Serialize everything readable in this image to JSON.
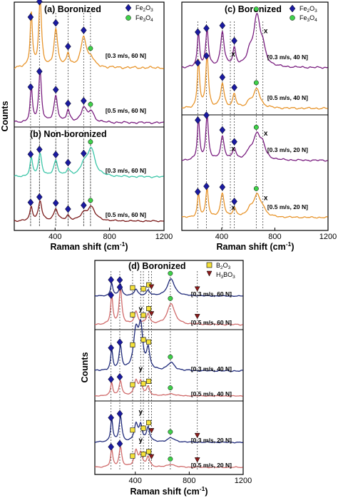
{
  "chart_data": [
    {
      "panel": "a",
      "title": "(a) Boronized",
      "type": "line",
      "xlabel": "",
      "ylabel": "Counts",
      "xlim": [
        100,
        1200
      ],
      "xticks": [
        400,
        800,
        1200
      ],
      "legend": [
        "Fe2O3",
        "Fe3O4"
      ],
      "markers": {
        "Fe2O3": [
          220,
          285,
          405,
          495,
          610
        ],
        "Fe3O4": [
          660
        ]
      },
      "series": [
        {
          "name": "[0.3 m/s, 60 N]",
          "color": "#e8952c",
          "peaks": [
            [
              225,
              0.8,
              10
            ],
            [
              290,
              1.0,
              12
            ],
            [
              405,
              0.55,
              16
            ],
            [
              495,
              0.2,
              14
            ],
            [
              610,
              0.45,
              24
            ],
            [
              665,
              0.12,
              24
            ]
          ]
        },
        {
          "name": "[0.5 m/s, 60 N]",
          "color": "#7a1f80",
          "peaks": [
            [
              225,
              0.6,
              10
            ],
            [
              290,
              0.9,
              12
            ],
            [
              405,
              0.45,
              16
            ],
            [
              495,
              0.2,
              14
            ],
            [
              610,
              0.25,
              24
            ],
            [
              665,
              0.18,
              24
            ]
          ]
        }
      ]
    },
    {
      "panel": "b",
      "title": "(b) Non-boronized",
      "type": "line",
      "xlabel": "Raman shift (cm-1)",
      "ylabel": "Counts",
      "xlim": [
        100,
        1200
      ],
      "xticks": [
        400,
        800,
        1200
      ],
      "markers": {
        "Fe2O3": [
          220,
          285,
          405,
          495,
          610
        ],
        "Fe3O4": [
          660
        ]
      },
      "series": [
        {
          "name": "[0.3 m/s, 60 N]",
          "color": "#3cc6a8",
          "peaks": [
            [
              225,
              0.35,
              12
            ],
            [
              290,
              0.45,
              15
            ],
            [
              405,
              0.3,
              18
            ],
            [
              495,
              0.12,
              16
            ],
            [
              610,
              0.2,
              28
            ],
            [
              665,
              0.55,
              34
            ]
          ]
        },
        {
          "name": "[0.5 m/s, 60 N]",
          "color": "#7a1a1a",
          "peaks": [
            [
              225,
              0.35,
              12
            ],
            [
              290,
              0.5,
              15
            ],
            [
              405,
              0.3,
              18
            ],
            [
              495,
              0.12,
              16
            ],
            [
              610,
              0.15,
              28
            ],
            [
              665,
              0.35,
              34
            ]
          ]
        }
      ]
    },
    {
      "panel": "c",
      "title": "(c) Boronized",
      "type": "line",
      "xlabel": "Raman shift (cm-1)",
      "ylabel": "",
      "xlim": [
        100,
        1200
      ],
      "xticks": [
        400,
        800,
        1200
      ],
      "legend": [
        "Fe2O3",
        "Fe3O4"
      ],
      "annotations": [
        "x"
      ],
      "markers": {
        "Fe2O3": [
          220,
          285,
          405,
          495
        ],
        "Fe3O4": [
          660
        ],
        "x": [
          465,
          710
        ]
      },
      "series": [
        {
          "name": "[0.3 m/s, 40 N]",
          "color": "#7a1f80",
          "peaks": [
            [
              225,
              0.7,
              10
            ],
            [
              290,
              0.75,
              12
            ],
            [
              405,
              0.7,
              16
            ],
            [
              495,
              0.35,
              14
            ],
            [
              610,
              0.2,
              24
            ],
            [
              665,
              1.0,
              32
            ],
            [
              710,
              0.25,
              22
            ]
          ]
        },
        {
          "name": "[0.5 m/s, 40 N]",
          "color": "#e8952c",
          "peaks": [
            [
              225,
              0.9,
              10
            ],
            [
              290,
              1.0,
              12
            ],
            [
              405,
              0.45,
              16
            ],
            [
              495,
              0.25,
              14
            ],
            [
              610,
              0.1,
              24
            ],
            [
              665,
              0.35,
              30
            ]
          ]
        },
        {
          "name": "[0.3 m/s, 20 N]",
          "color": "#7a1f80",
          "peaks": [
            [
              225,
              0.9,
              10
            ],
            [
              290,
              0.95,
              12
            ],
            [
              405,
              0.5,
              16
            ],
            [
              495,
              0.25,
              14
            ],
            [
              610,
              0.15,
              24
            ],
            [
              665,
              0.55,
              32
            ],
            [
              710,
              0.25,
              22
            ]
          ]
        },
        {
          "name": "[0.5 m/s, 20 N]",
          "color": "#e8952c",
          "peaks": [
            [
              225,
              0.55,
              10
            ],
            [
              290,
              0.65,
              12
            ],
            [
              405,
              0.55,
              16
            ],
            [
              495,
              0.2,
              14
            ],
            [
              610,
              0.15,
              24
            ],
            [
              665,
              0.5,
              32
            ],
            [
              710,
              0.15,
              22
            ]
          ]
        }
      ]
    },
    {
      "panel": "d",
      "title": "(d) Boronized",
      "type": "line",
      "xlabel": "Raman shift (cm-1)",
      "ylabel": "Counts",
      "xlim": [
        100,
        1200
      ],
      "xticks": [
        400,
        800,
        1200
      ],
      "legend": [
        "B2O3",
        "H3BO3"
      ],
      "annotations": [
        "y"
      ],
      "markers": {
        "Fe2O3": [
          220,
          285
        ],
        "B2O3": [
          380,
          460,
          500
        ],
        "H3BO3": [
          520,
          860
        ],
        "Fe3O4": [
          660
        ],
        "y": [
          440
        ]
      },
      "series": [
        {
          "name": "[0.3 m/s, 60 N]",
          "color": "#1f2a7a",
          "peaks": [
            [
              225,
              0.6,
              10
            ],
            [
              290,
              0.55,
              12
            ],
            [
              405,
              0.3,
              16
            ],
            [
              495,
              0.25,
              14
            ],
            [
              665,
              0.8,
              32
            ]
          ]
        },
        {
          "name": "[0.5 m/s, 60 N]",
          "color": "#d06b6b",
          "peaks": [
            [
              225,
              0.8,
              10
            ],
            [
              290,
              1.0,
              12
            ],
            [
              405,
              0.35,
              16
            ],
            [
              495,
              0.3,
              14
            ],
            [
              665,
              0.6,
              32
            ]
          ]
        },
        {
          "name": "[0.3 m/s, 40 N]",
          "color": "#1f2a7a",
          "peaks": [
            [
              225,
              0.5,
              10
            ],
            [
              290,
              0.6,
              12
            ],
            [
              405,
              0.95,
              22
            ],
            [
              440,
              1.0,
              18
            ],
            [
              495,
              0.5,
              14
            ],
            [
              665,
              0.2,
              32
            ]
          ]
        },
        {
          "name": "[0.5 m/s, 40 N]",
          "color": "#d06b6b",
          "peaks": [
            [
              225,
              0.6,
              10
            ],
            [
              290,
              0.7,
              12
            ],
            [
              405,
              0.7,
              16
            ],
            [
              440,
              0.6,
              14
            ],
            [
              495,
              0.4,
              14
            ],
            [
              665,
              0.1,
              32
            ]
          ]
        },
        {
          "name": "[0.3 m/s, 20 N]",
          "color": "#1f2a7a",
          "peaks": [
            [
              225,
              0.8,
              10
            ],
            [
              290,
              0.9,
              12
            ],
            [
              405,
              0.6,
              16
            ],
            [
              440,
              0.55,
              14
            ],
            [
              495,
              0.5,
              14
            ],
            [
              665,
              0.15,
              32
            ]
          ]
        },
        {
          "name": "[0.5 m/s, 20 N]",
          "color": "#d06b6b",
          "peaks": [
            [
              225,
              0.6,
              10
            ],
            [
              290,
              0.7,
              12
            ],
            [
              405,
              0.55,
              16
            ],
            [
              440,
              0.45,
              14
            ],
            [
              495,
              0.35,
              14
            ],
            [
              665,
              0.1,
              32
            ]
          ]
        }
      ]
    }
  ],
  "colors": {
    "fe2o3": "#1a1aa0",
    "fe3o4": "#3fd14a",
    "b2o3": "#f5e23a",
    "h3bo3": "#8c1a1a"
  }
}
